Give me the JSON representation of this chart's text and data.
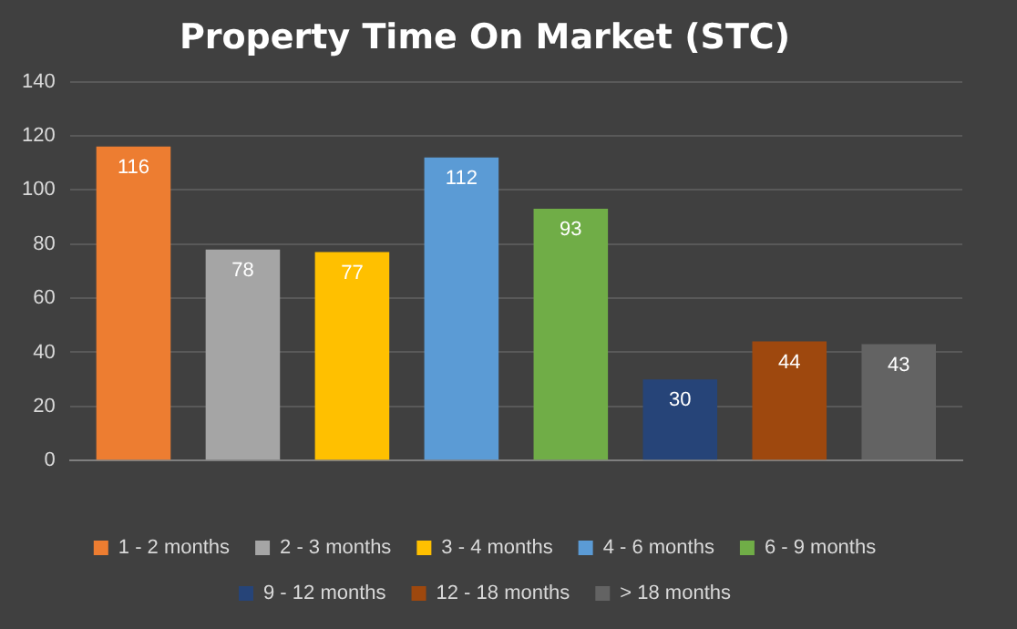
{
  "chart_data": {
    "type": "bar",
    "title": "Property Time On Market (STC)",
    "categories": [
      null
    ],
    "series": [
      {
        "name": "1 - 2 months",
        "color": "#ed7d31",
        "values": [
          116
        ]
      },
      {
        "name": "2 - 3 months",
        "color": "#a5a5a5",
        "values": [
          78
        ]
      },
      {
        "name": "3 - 4 months",
        "color": "#ffc000",
        "values": [
          77
        ]
      },
      {
        "name": "4 - 6 months",
        "color": "#5b9bd5",
        "values": [
          112
        ]
      },
      {
        "name": "6 - 9 months",
        "color": "#70ad47",
        "values": [
          93
        ]
      },
      {
        "name": "9 - 12 months",
        "color": "#264478",
        "values": [
          30
        ]
      },
      {
        "name": "12 - 18 months",
        "color": "#9e480e",
        "values": [
          44
        ]
      },
      {
        "name": "> 18 months",
        "color": "#636363",
        "values": [
          43
        ]
      }
    ],
    "ylim": [
      0,
      140
    ],
    "yticks": [
      0,
      20,
      40,
      60,
      80,
      100,
      120,
      140
    ],
    "grid": "y",
    "legend": "bottom",
    "data_labels": true
  }
}
